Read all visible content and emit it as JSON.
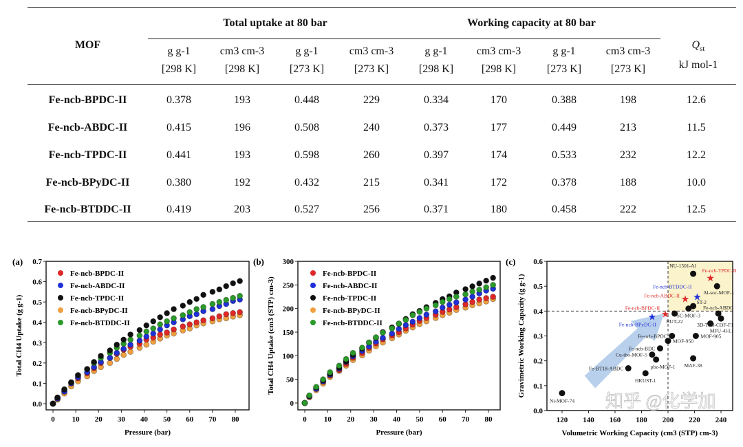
{
  "table": {
    "mof_header": "MOF",
    "group_total": "Total uptake at 80 bar",
    "group_working": "Working capacity at 80 bar",
    "qst_header": "Q",
    "qst_sub": "st",
    "qst_unit": "kJ mol-1",
    "unit_headers": [
      {
        "unit": "g g-1",
        "temp": "[298 K]"
      },
      {
        "unit": "cm3 cm-3",
        "temp": "[298 K]"
      },
      {
        "unit": "g g-1",
        "temp": "[273 K]"
      },
      {
        "unit": "cm3 cm-3",
        "temp": "[273 K]"
      },
      {
        "unit": "g g-1",
        "temp": "[298 K]"
      },
      {
        "unit": "cm3 cm-3",
        "temp": "[298 K]"
      },
      {
        "unit": "g g-1",
        "temp": "[273 K]"
      },
      {
        "unit": "cm3 cm-3",
        "temp": "[273 K]"
      }
    ],
    "rows": [
      {
        "mof": "Fe-ncb-BPDC-II",
        "values": [
          "0.378",
          "193",
          "0.448",
          "229",
          "0.334",
          "170",
          "0.388",
          "198",
          "12.6"
        ]
      },
      {
        "mof": "Fe-ncb-ABDC-II",
        "values": [
          "0.415",
          "196",
          "0.508",
          "240",
          "0.373",
          "177",
          "0.449",
          "213",
          "11.5"
        ]
      },
      {
        "mof": "Fe-ncb-TPDC-II",
        "values": [
          "0.441",
          "193",
          "0.598",
          "260",
          "0.397",
          "174",
          "0.533",
          "232",
          "12.2"
        ]
      },
      {
        "mof": "Fe-ncb-BPyDC-II",
        "values": [
          "0.380",
          "192",
          "0.432",
          "215",
          "0.341",
          "172",
          "0.378",
          "188",
          "10.0"
        ]
      },
      {
        "mof": "Fe-ncb-BTDDC-II",
        "values": [
          "0.419",
          "203",
          "0.527",
          "256",
          "0.371",
          "180",
          "0.458",
          "222",
          "12.5"
        ]
      }
    ]
  },
  "watermark": "知乎 @化学加",
  "chart_data": [
    {
      "panel": "(a)",
      "type": "scatter",
      "xlabel": "Pressure (bar)",
      "ylabel": "Total CH4 Uptake (g g-1)",
      "xlim": [
        0,
        85
      ],
      "ylim": [
        0,
        0.7
      ],
      "xticks": [
        "0",
        "10",
        "20",
        "30",
        "40",
        "50",
        "60",
        "70",
        "80"
      ],
      "yticks": [
        "0.0",
        "0.1",
        "0.2",
        "0.3",
        "0.4",
        "0.5",
        "0.6",
        "0.7"
      ],
      "legend": "top-left",
      "x": [
        0,
        2,
        5,
        8,
        11,
        15,
        18,
        21,
        25,
        28,
        31,
        34,
        38,
        41,
        44,
        47,
        50,
        53,
        57,
        60,
        63,
        66,
        70,
        73,
        76,
        79,
        82
      ],
      "series": [
        {
          "name": "Fe-ncb-BPyDC-II",
          "color": "#f0a040",
          "values": [
            0,
            0.02,
            0.05,
            0.085,
            0.11,
            0.135,
            0.16,
            0.18,
            0.2,
            0.22,
            0.24,
            0.255,
            0.275,
            0.29,
            0.305,
            0.32,
            0.335,
            0.345,
            0.36,
            0.37,
            0.385,
            0.395,
            0.405,
            0.415,
            0.42,
            0.428,
            0.435
          ]
        },
        {
          "name": "Fe-ncb-BPDC-II",
          "color": "#e02828",
          "values": [
            0,
            0.025,
            0.06,
            0.1,
            0.125,
            0.15,
            0.175,
            0.2,
            0.225,
            0.245,
            0.265,
            0.28,
            0.295,
            0.315,
            0.325,
            0.34,
            0.35,
            0.365,
            0.38,
            0.39,
            0.4,
            0.41,
            0.42,
            0.43,
            0.44,
            0.445,
            0.45
          ]
        },
        {
          "name": "Fe-ncb-ABDC-II",
          "color": "#2030d8",
          "values": [
            0,
            0.025,
            0.06,
            0.1,
            0.13,
            0.155,
            0.18,
            0.205,
            0.225,
            0.25,
            0.27,
            0.29,
            0.31,
            0.33,
            0.345,
            0.365,
            0.385,
            0.4,
            0.415,
            0.43,
            0.44,
            0.455,
            0.465,
            0.48,
            0.49,
            0.505,
            0.512
          ]
        },
        {
          "name": "Fe-ncb-BTDDC-II",
          "color": "#2a9a2a",
          "values": [
            0,
            0.03,
            0.07,
            0.105,
            0.14,
            0.17,
            0.2,
            0.225,
            0.25,
            0.275,
            0.295,
            0.315,
            0.335,
            0.355,
            0.37,
            0.39,
            0.405,
            0.42,
            0.435,
            0.45,
            0.465,
            0.475,
            0.49,
            0.5,
            0.51,
            0.52,
            0.53
          ]
        },
        {
          "name": "Fe-ncb-TPDC-II",
          "color": "#111111",
          "values": [
            0,
            0.03,
            0.07,
            0.105,
            0.14,
            0.17,
            0.205,
            0.235,
            0.262,
            0.29,
            0.315,
            0.34,
            0.362,
            0.385,
            0.405,
            0.425,
            0.445,
            0.465,
            0.482,
            0.5,
            0.515,
            0.535,
            0.55,
            0.562,
            0.578,
            0.592,
            0.603
          ]
        }
      ],
      "legend_order": [
        "Fe-ncb-BPDC-II",
        "Fe-ncb-ABDC-II",
        "Fe-ncb-TPDC-II",
        "Fe-ncb-BPyDC-II",
        "Fe-ncb-BTDDC-II"
      ]
    },
    {
      "panel": "(b)",
      "type": "scatter",
      "xlabel": "Pressure (bar)",
      "ylabel": "Total CH4 Uptake (cm3 (STP) cm-3)",
      "xlim": [
        0,
        85
      ],
      "ylim": [
        0,
        300
      ],
      "xticks": [
        "0",
        "10",
        "20",
        "30",
        "40",
        "50",
        "60",
        "70",
        "80"
      ],
      "yticks": [
        "0",
        "50",
        "100",
        "150",
        "200",
        "250",
        "300"
      ],
      "legend": "top-left",
      "x": [
        0,
        2,
        5,
        8,
        11,
        15,
        18,
        21,
        25,
        28,
        31,
        34,
        38,
        41,
        44,
        47,
        50,
        53,
        57,
        60,
        63,
        66,
        70,
        73,
        76,
        79,
        82
      ],
      "series": [
        {
          "name": "Fe-ncb-BPyDC-II",
          "color": "#f0a040",
          "values": [
            0,
            12,
            27,
            41,
            55,
            68,
            79,
            91,
            101,
            111,
            120,
            128,
            137,
            145,
            153,
            160,
            167,
            173,
            180,
            186,
            191,
            197,
            202,
            207,
            211,
            215,
            220
          ]
        },
        {
          "name": "Fe-ncb-BPDC-II",
          "color": "#e02828",
          "values": [
            0,
            14,
            30,
            45,
            58,
            70,
            83,
            96,
            106,
            117,
            126,
            135,
            143,
            150,
            158,
            166,
            174,
            180,
            187,
            193,
            198,
            203,
            209,
            214,
            219,
            222,
            225
          ]
        },
        {
          "name": "Fe-ncb-ABDC-II",
          "color": "#2030d8",
          "values": [
            0,
            14,
            30,
            46,
            60,
            73,
            87,
            99,
            110,
            120,
            130,
            138,
            147,
            157,
            165,
            172,
            180,
            187,
            194,
            202,
            208,
            213,
            219,
            225,
            232,
            238,
            242
          ]
        },
        {
          "name": "Fe-ncb-TPDC-II",
          "color": "#111111",
          "values": [
            0,
            15,
            33,
            48,
            62,
            75,
            88,
            102,
            115,
            128,
            138,
            150,
            160,
            168,
            178,
            188,
            195,
            203,
            212,
            220,
            226,
            234,
            241,
            247,
            253,
            259,
            265
          ]
        },
        {
          "name": "Fe-ncb-BTDDC-II",
          "color": "#2a9a2a",
          "values": [
            0,
            16,
            34,
            50,
            65,
            79,
            93,
            106,
            117,
            128,
            139,
            149,
            158,
            168,
            176,
            186,
            193,
            200,
            207,
            214,
            220,
            225,
            230,
            236,
            240,
            245,
            250
          ]
        }
      ],
      "legend_order": [
        "Fe-ncb-BPDC-II",
        "Fe-ncb-ABDC-II",
        "Fe-ncb-TPDC-II",
        "Fe-ncb-BPyDC-II",
        "Fe-ncb-BTDDC-II"
      ]
    },
    {
      "panel": "(c)",
      "type": "scatter",
      "xlabel": "Volumetric Working Capacity (cm3 (STP) cm-3)",
      "ylabel": "Gravimetric Working Capacity (g g-1)",
      "xlim": [
        110,
        250
      ],
      "ylim": [
        0,
        0.6
      ],
      "xticks": [
        "120",
        "140",
        "160",
        "180",
        "200",
        "220",
        "240"
      ],
      "yticks": [
        "0.0",
        "0.1",
        "0.2",
        "0.3",
        "0.4",
        "0.5",
        "0.6"
      ],
      "reference_lines": {
        "x": 200,
        "y": 0.4
      },
      "highlight_color": "#fbf3cc",
      "arrow_color": "#a8c4e8",
      "points": [
        {
          "label": "Ni-MOF-74",
          "x": 120,
          "y": 0.07
        },
        {
          "label": "Fe-BT18-ABDC",
          "x": 170,
          "y": 0.17
        },
        {
          "label": "HKUST-1",
          "x": 183,
          "y": 0.15
        },
        {
          "label": "Cu-tbo-MOF-5",
          "x": 188,
          "y": 0.225
        },
        {
          "label": "pbz-MOF-1",
          "x": 191,
          "y": 0.205
        },
        {
          "label": "Fe-ncb-BDC",
          "x": 194,
          "y": 0.25
        },
        {
          "label": "MOF-950",
          "x": 200,
          "y": 0.28
        },
        {
          "label": "Fe-ncb-BPDC",
          "x": 203,
          "y": 0.3
        },
        {
          "label": "BUT-22",
          "x": 205,
          "y": 0.39
        },
        {
          "label": "SC-MOF-3",
          "x": 215.5,
          "y": 0.41
        },
        {
          "label": "ST-2",
          "x": 219,
          "y": 0.42
        },
        {
          "label": "NU-1501-Al",
          "x": 219,
          "y": 0.55
        },
        {
          "label": "MAF-38",
          "x": 219,
          "y": 0.21
        },
        {
          "label": "MOF-905",
          "x": 221,
          "y": 0.3
        },
        {
          "label": "MFU-4l-Li",
          "x": 232,
          "y": 0.35
        },
        {
          "label": "Al-soc-MOF-1",
          "x": 237,
          "y": 0.5
        },
        {
          "label": "Fe-ncb-ABDC",
          "x": 238,
          "y": 0.39
        },
        {
          "label": "3D-TFB-COF-F1",
          "x": 240,
          "y": 0.37
        }
      ],
      "stars": [
        {
          "label": "Fe-ncb-BPyDC-II",
          "x": 188,
          "y": 0.378,
          "color": "#2030d8"
        },
        {
          "label": "Fe-ncb-BPDC-II",
          "x": 198,
          "y": 0.388,
          "color": "#e02828"
        },
        {
          "label": "Fe-ncb-ABDC-II",
          "x": 213,
          "y": 0.449,
          "color": "#e02828"
        },
        {
          "label": "Fe-ncb-BTDDC-II",
          "x": 222,
          "y": 0.458,
          "color": "#2030d8"
        },
        {
          "label": "Fe-ncb-TPDC-II",
          "x": 232,
          "y": 0.533,
          "color": "#e02828"
        }
      ]
    }
  ]
}
